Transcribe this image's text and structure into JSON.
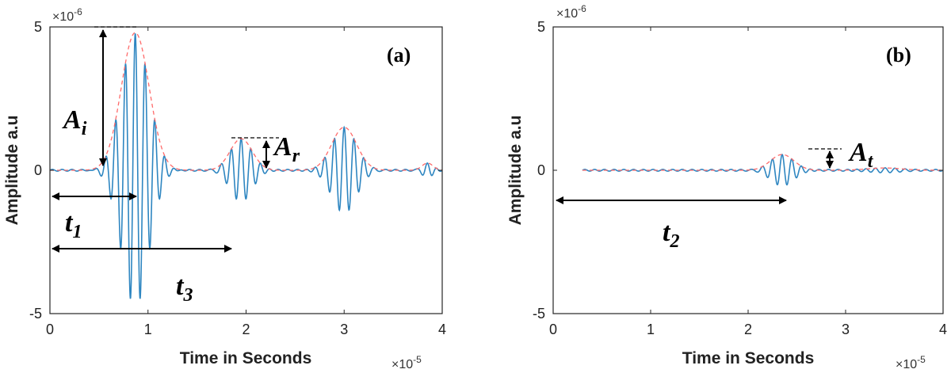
{
  "chart_data": [
    {
      "type": "line",
      "panel_label": "(a)",
      "xlabel": "Time in Seconds",
      "ylabel": "Amplitude a.u",
      "x_exponent": "×10",
      "x_exponent_power": "-5",
      "y_exponent": "×10",
      "y_exponent_power": "-6",
      "xlim": [
        0,
        4
      ],
      "ylim": [
        -5,
        5
      ],
      "x_ticks": [
        "0",
        "1",
        "2",
        "3",
        "4"
      ],
      "y_ticks": [
        "-5",
        "0",
        "5"
      ],
      "grid": false,
      "series": [
        {
          "style": "signal",
          "color": "#2e86c1"
        },
        {
          "style": "envelope",
          "color": "#ff6b6b"
        }
      ],
      "wave_packets": [
        {
          "center": 0.87,
          "width": 0.2,
          "amplitude": 4.8,
          "frequency": 10
        },
        {
          "center": 1.95,
          "width": 0.16,
          "amplitude": 1.1,
          "frequency": 10
        },
        {
          "center": 3.0,
          "width": 0.18,
          "amplitude": 1.5,
          "frequency": 10
        },
        {
          "center": 3.85,
          "width": 0.08,
          "amplitude": 0.25,
          "frequency": 10
        }
      ],
      "annotations": [
        {
          "symbol": "A",
          "sub": "i"
        },
        {
          "symbol": "A",
          "sub": "r"
        },
        {
          "symbol": "t",
          "sub": "1"
        },
        {
          "symbol": "t",
          "sub": "3"
        }
      ]
    },
    {
      "type": "line",
      "panel_label": "(b)",
      "xlabel": "Time in Seconds",
      "ylabel": "Amplitude a.u",
      "x_exponent": "×10",
      "x_exponent_power": "-5",
      "y_exponent": "×10",
      "y_exponent_power": "-6",
      "xlim": [
        0,
        4
      ],
      "ylim": [
        -5,
        5
      ],
      "x_ticks": [
        "0",
        "1",
        "2",
        "3",
        "4"
      ],
      "y_ticks": [
        "-5",
        "0",
        "5"
      ],
      "grid": false,
      "series": [
        {
          "style": "signal",
          "color": "#2e86c1"
        },
        {
          "style": "envelope",
          "color": "#ff6b6b"
        }
      ],
      "signal_start": 0.3,
      "wave_packets": [
        {
          "center": 2.35,
          "width": 0.17,
          "amplitude": 0.55,
          "frequency": 10
        },
        {
          "center": 3.4,
          "width": 0.25,
          "amplitude": 0.08,
          "frequency": 10
        }
      ],
      "annotations": [
        {
          "symbol": "A",
          "sub": "t"
        },
        {
          "symbol": "t",
          "sub": "2"
        }
      ]
    }
  ]
}
